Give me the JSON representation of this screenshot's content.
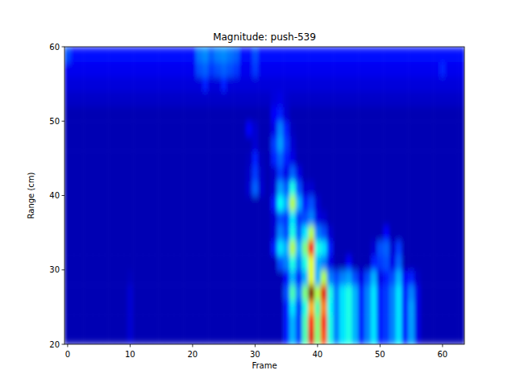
{
  "chart_data": {
    "type": "heatmap",
    "title": "Magnitude: push-539",
    "x_label": "Frame",
    "y_label": "Range (cm)",
    "xlim": [
      -0.5,
      63.5
    ],
    "ylim": [
      20,
      60
    ],
    "xticks": [
      0,
      10,
      20,
      30,
      40,
      50,
      60
    ],
    "yticks": [
      20,
      30,
      40,
      50,
      60
    ],
    "color_range": [
      0,
      100
    ],
    "x": [
      0,
      1,
      2,
      3,
      4,
      5,
      6,
      7,
      8,
      9,
      10,
      11,
      12,
      13,
      14,
      15,
      16,
      17,
      18,
      19,
      20,
      21,
      22,
      23,
      24,
      25,
      26,
      27,
      28,
      29,
      30,
      31,
      32,
      33,
      34,
      35,
      36,
      37,
      38,
      39,
      40,
      41,
      42,
      43,
      44,
      45,
      46,
      47,
      48,
      49,
      50,
      51,
      52,
      53,
      54,
      55,
      56,
      57,
      58,
      59,
      60,
      61,
      62,
      63
    ],
    "y": [
      21,
      23,
      25,
      27,
      29,
      31,
      33,
      35,
      37,
      39,
      41,
      43,
      45,
      47,
      49,
      51,
      53,
      55,
      57,
      59
    ],
    "cells": [
      [
        5,
        5,
        5,
        5,
        5,
        5,
        5,
        5,
        5,
        5,
        8,
        5,
        5,
        5,
        5,
        5,
        5,
        5,
        5,
        5,
        5,
        5,
        5,
        5,
        5,
        5,
        5,
        5,
        5,
        5,
        5,
        5,
        5,
        5,
        5,
        15,
        30,
        18,
        45,
        90,
        50,
        80,
        40,
        25,
        35,
        40,
        30,
        15,
        25,
        35,
        15,
        18,
        25,
        35,
        15,
        28,
        10,
        5,
        5,
        5,
        5,
        5,
        5,
        5
      ],
      [
        5,
        5,
        5,
        5,
        5,
        5,
        5,
        5,
        5,
        5,
        8,
        5,
        5,
        5,
        5,
        5,
        5,
        5,
        5,
        5,
        5,
        5,
        5,
        5,
        5,
        5,
        5,
        5,
        5,
        5,
        5,
        5,
        5,
        5,
        5,
        15,
        30,
        18,
        45,
        85,
        50,
        85,
        40,
        25,
        35,
        40,
        30,
        15,
        25,
        35,
        15,
        18,
        25,
        35,
        15,
        28,
        10,
        5,
        5,
        5,
        5,
        5,
        5,
        5
      ],
      [
        5,
        5,
        5,
        5,
        5,
        5,
        5,
        5,
        5,
        5,
        8,
        5,
        5,
        5,
        5,
        5,
        5,
        5,
        5,
        5,
        5,
        5,
        5,
        5,
        5,
        5,
        5,
        5,
        5,
        5,
        5,
        5,
        5,
        5,
        5,
        15,
        35,
        18,
        40,
        70,
        45,
        75,
        38,
        25,
        35,
        40,
        30,
        15,
        25,
        35,
        15,
        18,
        25,
        35,
        15,
        28,
        10,
        5,
        5,
        5,
        5,
        5,
        5,
        5
      ],
      [
        5,
        5,
        5,
        5,
        5,
        5,
        5,
        5,
        5,
        5,
        8,
        5,
        5,
        5,
        5,
        5,
        5,
        5,
        5,
        5,
        5,
        5,
        5,
        5,
        5,
        5,
        5,
        5,
        5,
        5,
        5,
        5,
        5,
        5,
        5,
        20,
        45,
        25,
        50,
        100,
        55,
        90,
        40,
        25,
        35,
        40,
        30,
        15,
        25,
        35,
        15,
        18,
        25,
        35,
        15,
        25,
        10,
        5,
        5,
        5,
        5,
        5,
        5,
        5
      ],
      [
        5,
        5,
        5,
        5,
        5,
        5,
        5,
        5,
        5,
        5,
        6,
        5,
        5,
        5,
        5,
        5,
        5,
        5,
        5,
        5,
        5,
        5,
        5,
        5,
        5,
        5,
        5,
        5,
        5,
        5,
        5,
        5,
        5,
        5,
        5,
        12,
        30,
        15,
        30,
        60,
        30,
        55,
        25,
        20,
        25,
        28,
        20,
        10,
        20,
        30,
        10,
        15,
        20,
        30,
        12,
        15,
        7,
        5,
        5,
        5,
        5,
        5,
        5,
        5
      ],
      [
        5,
        5,
        5,
        5,
        5,
        5,
        5,
        5,
        5,
        5,
        5,
        5,
        5,
        5,
        5,
        5,
        5,
        5,
        5,
        5,
        5,
        5,
        5,
        5,
        5,
        5,
        5,
        5,
        5,
        5,
        5,
        5,
        5,
        5,
        20,
        25,
        40,
        25,
        40,
        60,
        30,
        25,
        10,
        5,
        5,
        12,
        5,
        5,
        5,
        15,
        18,
        20,
        10,
        22,
        5,
        5,
        5,
        5,
        5,
        5,
        5,
        5,
        5,
        5
      ],
      [
        5,
        5,
        5,
        5,
        5,
        5,
        5,
        5,
        5,
        5,
        5,
        5,
        5,
        5,
        5,
        5,
        5,
        5,
        5,
        5,
        5,
        5,
        5,
        5,
        5,
        5,
        5,
        5,
        5,
        5,
        5,
        5,
        5,
        15,
        35,
        30,
        55,
        30,
        50,
        88,
        40,
        35,
        15,
        5,
        5,
        5,
        5,
        5,
        5,
        8,
        20,
        22,
        8,
        18,
        5,
        5,
        5,
        5,
        5,
        5,
        5,
        5,
        5,
        5
      ],
      [
        5,
        5,
        5,
        5,
        5,
        5,
        5,
        5,
        5,
        5,
        5,
        5,
        5,
        5,
        5,
        5,
        5,
        5,
        5,
        5,
        5,
        5,
        5,
        5,
        5,
        5,
        5,
        5,
        5,
        5,
        5,
        5,
        5,
        8,
        25,
        20,
        40,
        22,
        35,
        55,
        25,
        20,
        8,
        5,
        5,
        5,
        5,
        5,
        5,
        5,
        5,
        12,
        5,
        5,
        5,
        5,
        5,
        5,
        5,
        5,
        5,
        5,
        5,
        5
      ],
      [
        5,
        5,
        5,
        5,
        5,
        5,
        5,
        5,
        5,
        5,
        5,
        5,
        5,
        5,
        5,
        5,
        5,
        5,
        5,
        5,
        5,
        5,
        5,
        5,
        5,
        5,
        5,
        5,
        5,
        5,
        5,
        5,
        5,
        8,
        20,
        18,
        35,
        18,
        20,
        25,
        10,
        8,
        5,
        5,
        5,
        5,
        5,
        5,
        5,
        5,
        5,
        5,
        5,
        5,
        5,
        5,
        5,
        5,
        5,
        5,
        5,
        5,
        5,
        5
      ],
      [
        5,
        5,
        5,
        5,
        5,
        5,
        5,
        5,
        5,
        5,
        5,
        5,
        5,
        5,
        5,
        5,
        5,
        5,
        5,
        5,
        5,
        5,
        5,
        5,
        5,
        5,
        5,
        5,
        5,
        5,
        5,
        5,
        5,
        15,
        38,
        30,
        55,
        30,
        15,
        20,
        8,
        5,
        5,
        5,
        5,
        5,
        5,
        5,
        5,
        5,
        5,
        5,
        5,
        5,
        5,
        5,
        5,
        5,
        5,
        5,
        5,
        5,
        5,
        5
      ],
      [
        5,
        5,
        5,
        5,
        5,
        5,
        5,
        5,
        5,
        5,
        5,
        5,
        5,
        5,
        5,
        5,
        5,
        5,
        5,
        5,
        5,
        5,
        5,
        5,
        5,
        5,
        5,
        5,
        5,
        8,
        22,
        8,
        5,
        8,
        28,
        22,
        40,
        20,
        8,
        8,
        5,
        5,
        5,
        5,
        5,
        5,
        5,
        5,
        5,
        5,
        5,
        5,
        5,
        5,
        5,
        5,
        5,
        5,
        5,
        5,
        5,
        5,
        5,
        5
      ],
      [
        5,
        5,
        5,
        5,
        5,
        5,
        5,
        5,
        5,
        5,
        5,
        5,
        5,
        5,
        5,
        5,
        5,
        5,
        5,
        5,
        5,
        5,
        5,
        5,
        5,
        5,
        5,
        5,
        5,
        7,
        18,
        7,
        5,
        7,
        18,
        10,
        22,
        10,
        5,
        5,
        5,
        5,
        5,
        5,
        5,
        5,
        5,
        5,
        5,
        5,
        5,
        5,
        5,
        5,
        5,
        5,
        5,
        5,
        5,
        5,
        5,
        5,
        5,
        5
      ],
      [
        5,
        5,
        5,
        5,
        5,
        5,
        5,
        5,
        5,
        5,
        5,
        5,
        5,
        5,
        5,
        5,
        5,
        5,
        5,
        5,
        5,
        5,
        5,
        5,
        5,
        5,
        5,
        5,
        5,
        6,
        15,
        6,
        5,
        15,
        22,
        15,
        10,
        5,
        5,
        5,
        5,
        5,
        5,
        5,
        5,
        5,
        5,
        5,
        5,
        5,
        5,
        5,
        5,
        5,
        5,
        5,
        5,
        5,
        5,
        5,
        5,
        5,
        5,
        5
      ],
      [
        5,
        5,
        5,
        5,
        5,
        5,
        5,
        5,
        5,
        5,
        5,
        5,
        5,
        5,
        5,
        5,
        5,
        5,
        5,
        5,
        5,
        5,
        5,
        5,
        5,
        5,
        5,
        5,
        5,
        5,
        8,
        5,
        5,
        18,
        28,
        18,
        8,
        5,
        5,
        5,
        5,
        5,
        5,
        5,
        5,
        5,
        5,
        5,
        5,
        5,
        5,
        5,
        5,
        5,
        5,
        5,
        5,
        5,
        5,
        5,
        5,
        5,
        5,
        5
      ],
      [
        5,
        5,
        5,
        5,
        5,
        5,
        5,
        5,
        5,
        5,
        5,
        5,
        5,
        5,
        5,
        5,
        5,
        5,
        5,
        5,
        5,
        5,
        5,
        5,
        5,
        5,
        5,
        5,
        5,
        12,
        8,
        5,
        5,
        10,
        25,
        15,
        6,
        5,
        5,
        5,
        5,
        5,
        5,
        5,
        5,
        5,
        5,
        5,
        5,
        5,
        5,
        5,
        5,
        5,
        5,
        5,
        5,
        5,
        5,
        5,
        5,
        5,
        5,
        5
      ],
      [
        5,
        5,
        5,
        5,
        5,
        5,
        5,
        5,
        5,
        5,
        5,
        5,
        5,
        5,
        5,
        5,
        5,
        5,
        5,
        5,
        5,
        5,
        5,
        5,
        5,
        5,
        5,
        5,
        5,
        5,
        5,
        5,
        5,
        12,
        15,
        8,
        5,
        5,
        5,
        5,
        5,
        5,
        5,
        5,
        5,
        5,
        5,
        5,
        5,
        5,
        5,
        5,
        5,
        5,
        5,
        5,
        5,
        5,
        5,
        5,
        5,
        5,
        5,
        5
      ],
      [
        7,
        7,
        7,
        7,
        7,
        7,
        7,
        7,
        7,
        7,
        7,
        7,
        7,
        7,
        7,
        7,
        7,
        7,
        7,
        7,
        7,
        7,
        7,
        7,
        7,
        7,
        7,
        7,
        7,
        7,
        7,
        7,
        7,
        9,
        10,
        8,
        7,
        7,
        7,
        7,
        7,
        7,
        7,
        7,
        7,
        7,
        7,
        7,
        7,
        7,
        7,
        7,
        7,
        7,
        7,
        7,
        7,
        7,
        7,
        7,
        7,
        7,
        7,
        7
      ],
      [
        9,
        9,
        9,
        9,
        9,
        9,
        9,
        9,
        9,
        9,
        9,
        9,
        9,
        9,
        9,
        9,
        9,
        9,
        9,
        9,
        9,
        9,
        15,
        9,
        9,
        15,
        9,
        9,
        9,
        9,
        9,
        9,
        9,
        9,
        9,
        9,
        9,
        9,
        9,
        9,
        9,
        9,
        9,
        9,
        9,
        9,
        9,
        9,
        9,
        9,
        9,
        9,
        9,
        9,
        9,
        9,
        9,
        9,
        9,
        9,
        9,
        9,
        9,
        9
      ],
      [
        11,
        11,
        11,
        11,
        11,
        11,
        11,
        11,
        11,
        11,
        11,
        11,
        11,
        11,
        11,
        11,
        11,
        11,
        11,
        11,
        11,
        20,
        22,
        18,
        20,
        22,
        20,
        18,
        11,
        11,
        18,
        11,
        11,
        11,
        11,
        11,
        11,
        11,
        11,
        11,
        11,
        11,
        11,
        11,
        11,
        11,
        11,
        11,
        11,
        11,
        11,
        11,
        11,
        11,
        11,
        11,
        11,
        11,
        11,
        11,
        16,
        11,
        11,
        11
      ],
      [
        20,
        14,
        14,
        14,
        14,
        14,
        14,
        14,
        14,
        14,
        14,
        14,
        14,
        14,
        14,
        14,
        14,
        14,
        14,
        14,
        14,
        24,
        26,
        22,
        25,
        26,
        24,
        22,
        14,
        14,
        20,
        14,
        14,
        14,
        14,
        14,
        14,
        14,
        14,
        14,
        14,
        14,
        14,
        14,
        14,
        14,
        14,
        14,
        14,
        14,
        14,
        14,
        14,
        14,
        14,
        14,
        14,
        14,
        14,
        14,
        14,
        14,
        14,
        14
      ]
    ]
  }
}
